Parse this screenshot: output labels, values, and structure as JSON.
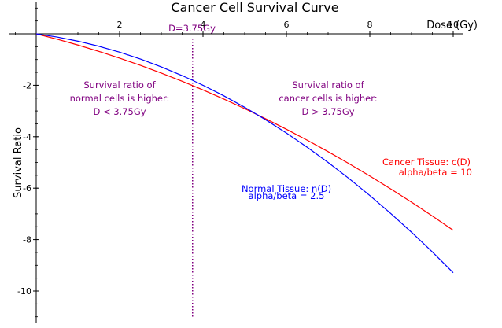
{
  "chart_data": {
    "type": "line",
    "title": "Cancer Cell Survival Curve",
    "xlabel": "Dose (Gy)",
    "ylabel": "Survival Ratio",
    "xlim": [
      0,
      10.2
    ],
    "ylim": [
      -11.2,
      1.2
    ],
    "x_ticks": [
      2,
      4,
      6,
      8,
      10
    ],
    "y_ticks": [
      -2,
      -4,
      -6,
      -8,
      -10
    ],
    "grid": false,
    "series": [
      {
        "name": "Cancer Tissue: c(D)",
        "params": "alpha/beta = 10",
        "color": "#ff0000",
        "x": [
          0,
          0.5,
          1,
          1.5,
          2,
          2.5,
          3,
          3.5,
          3.75,
          4,
          4.5,
          5,
          5.5,
          6,
          6.5,
          7,
          7.5,
          8,
          8.5,
          9,
          9.5,
          10
        ],
        "y": [
          0,
          -0.209,
          -0.436,
          -0.682,
          -0.945,
          -1.227,
          -1.527,
          -1.845,
          -2.011,
          -2.182,
          -2.536,
          -2.909,
          -3.3,
          -3.709,
          -4.136,
          -4.582,
          -5.045,
          -5.527,
          -6.027,
          -6.545,
          -7.082,
          -7.636
        ]
      },
      {
        "name": "Normal Tissue: n(D)",
        "params": "alpha/beta = 2.5",
        "color": "#0000ff",
        "x": [
          0,
          0.5,
          1,
          1.5,
          2,
          2.5,
          3,
          3.5,
          3.75,
          4,
          4.5,
          5,
          5.5,
          6,
          6.5,
          7,
          7.5,
          8,
          8.5,
          9,
          9.5,
          10
        ],
        "y": [
          0,
          -0.125,
          -0.286,
          -0.482,
          -0.714,
          -0.982,
          -1.286,
          -1.625,
          -1.808,
          -2.0,
          -2.411,
          -2.857,
          -3.339,
          -3.857,
          -4.411,
          -5.0,
          -5.625,
          -6.286,
          -6.982,
          -7.714,
          -8.482,
          -9.286
        ]
      }
    ],
    "vline": {
      "x": 3.75,
      "label": "D=3.75Gy",
      "color": "#800080"
    },
    "annotations": {
      "left": [
        "Survival ratio of",
        "normal cells is higher:",
        "D < 3.75Gy"
      ],
      "right": [
        "Survival ratio of",
        "cancer cells is higher:",
        "D > 3.75Gy"
      ]
    }
  }
}
